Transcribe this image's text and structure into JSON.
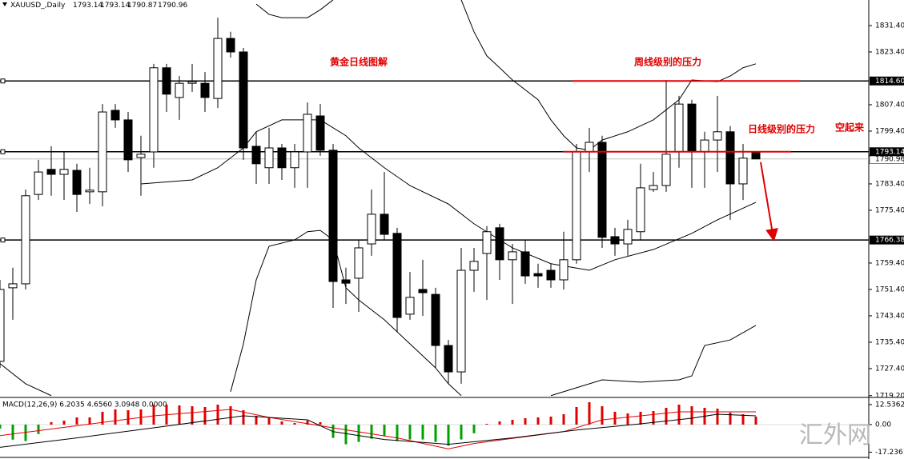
{
  "chart_data": {
    "type": "candlestick",
    "title": "XAUUSD_,Daily",
    "header_values": [
      1793.14,
      1793.14,
      1790.87,
      1790.96
    ],
    "open": [
      1729.6,
      1751.9,
      1753.1,
      1780.2,
      1787.8,
      1786.3,
      1787.5,
      1781.0,
      1781.0,
      1805.7,
      1802.8,
      1791.4,
      1793.1,
      1818.6,
      1809.6,
      1813.9,
      1813.9,
      1809.3,
      1827.5,
      1823.4,
      1794.8,
      1788.3,
      1794.3,
      1788.3,
      1793.1,
      1804.0,
      1793.6,
      1754.3,
      1754.8,
      1765.2,
      1774.2,
      1768.4,
      1743.9,
      1751.4,
      1749.9,
      1734.4,
      1726.4,
      1757.2,
      1762.3,
      1770.1,
      1760.4,
      1762.8,
      1756.2,
      1757.2,
      1754.3,
      1760.4,
      1793.1,
      1796.0,
      1767.4,
      1765.2,
      1768.9,
      1781.7,
      1782.9,
      1793.1,
      1807.6,
      1793.1,
      1796.7,
      1799.2,
      1783.4,
      1793.14
    ],
    "high": [
      1754.3,
      1758.0,
      1781.7,
      1790.7,
      1794.8,
      1793.1,
      1789.5,
      1788.3,
      1807.6,
      1807.6,
      1805.2,
      1798.0,
      1819.8,
      1819.8,
      1816.1,
      1819.8,
      1817.3,
      1833.8,
      1829.5,
      1824.6,
      1799.2,
      1800.4,
      1795.5,
      1795.5,
      1808.1,
      1807.6,
      1795.5,
      1758.0,
      1766.4,
      1781.7,
      1787.0,
      1770.1,
      1756.7,
      1760.4,
      1751.9,
      1736.1,
      1764.0,
      1764.0,
      1770.6,
      1771.3,
      1765.2,
      1766.4,
      1759.2,
      1759.2,
      1768.9,
      1795.5,
      1800.4,
      1798.0,
      1770.1,
      1772.5,
      1789.5,
      1787.0,
      1814.9,
      1810.1,
      1808.9,
      1799.2,
      1810.1,
      1800.9,
      1795.5,
      1793.14
    ],
    "low": [
      1727.6,
      1742.2,
      1751.4,
      1778.5,
      1779.8,
      1778.5,
      1774.9,
      1777.3,
      1776.6,
      1800.4,
      1787.0,
      1779.8,
      1788.3,
      1805.2,
      1802.8,
      1811.3,
      1805.2,
      1806.4,
      1821.7,
      1790.7,
      1783.4,
      1783.4,
      1784.6,
      1782.2,
      1782.2,
      1791.9,
      1745.8,
      1747.0,
      1744.6,
      1761.6,
      1766.4,
      1738.6,
      1742.2,
      1743.4,
      1727.6,
      1722.8,
      1722.8,
      1750.7,
      1748.2,
      1754.3,
      1747.0,
      1753.1,
      1751.9,
      1751.9,
      1751.4,
      1759.2,
      1787.0,
      1764.0,
      1761.6,
      1761.6,
      1766.4,
      1781.0,
      1781.0,
      1788.3,
      1782.2,
      1782.2,
      1787.0,
      1772.5,
      1778.5,
      1790.87
    ],
    "close": [
      1751.4,
      1753.1,
      1779.8,
      1787.0,
      1786.3,
      1787.8,
      1780.2,
      1781.5,
      1805.2,
      1802.8,
      1790.7,
      1792.4,
      1818.6,
      1810.6,
      1813.9,
      1814.4,
      1809.6,
      1827.5,
      1823.4,
      1794.3,
      1789.5,
      1794.3,
      1788.3,
      1793.1,
      1804.5,
      1793.6,
      1753.8,
      1753.3,
      1764.0,
      1774.2,
      1768.1,
      1742.9,
      1749.0,
      1750.4,
      1734.4,
      1726.4,
      1757.2,
      1759.9,
      1768.9,
      1760.4,
      1762.8,
      1755.5,
      1755.5,
      1754.3,
      1760.4,
      1793.1,
      1796.0,
      1767.2,
      1765.2,
      1769.6,
      1782.2,
      1782.9,
      1792.4,
      1807.6,
      1793.1,
      1796.7,
      1799.2,
      1783.4,
      1791.2,
      1790.96
    ],
    "up_color": "#ffffff",
    "down_color": "#000000",
    "ylim": [
      1718.9,
      1839.15
    ],
    "yticks": [
      {
        "value": 1831.4,
        "label": "1831.40"
      },
      {
        "value": 1823.4,
        "label": "1823.40"
      },
      {
        "value": 1807.4,
        "label": "1807.40"
      },
      {
        "value": 1799.4,
        "label": "1799.40"
      },
      {
        "value": 1783.4,
        "label": "1783.40"
      },
      {
        "value": 1775.4,
        "label": "1775.40"
      },
      {
        "value": 1759.4,
        "label": "1759.40"
      },
      {
        "value": 1751.4,
        "label": "1751.40"
      },
      {
        "value": 1743.4,
        "label": "1743.40"
      },
      {
        "value": 1735.4,
        "label": "1735.40"
      },
      {
        "value": 1727.4,
        "label": "1727.40"
      },
      {
        "value": 1719.2,
        "label": "1719.20"
      }
    ],
    "levels": [
      {
        "value": 1814.6,
        "label": "1814.60"
      },
      {
        "value": 1793.14,
        "label": "1793.14"
      },
      {
        "value": 1766.38,
        "label": "1766.38"
      }
    ],
    "last_price": {
      "value": 1790.96,
      "label": "1790.96"
    },
    "pressure_levels": [
      1814.6,
      1793.14
    ],
    "pressure_color": "#e00000",
    "bollinger": {
      "upper": {
        "x": [
          20,
          21,
          22,
          24,
          25,
          26,
          30,
          36,
          37,
          38,
          39,
          40,
          42,
          43,
          44,
          45,
          46,
          47,
          49,
          51,
          53,
          54,
          56,
          57,
          58,
          59
        ],
        "values": [
          1837.9,
          1834.8,
          1833.8,
          1833.8,
          1836.2,
          1839.2,
          null,
          1839.2,
          1829.5,
          1822.2,
          1818.6,
          1814.9,
          1808.9,
          1802.8,
          1798.0,
          1794.3,
          1793.6,
          1796.7,
          1799.2,
          1802.8,
          1808.9,
          1814.9,
          1814.4,
          1816.1,
          1818.6,
          1819.8
        ]
      },
      "middle": {
        "x": [
          11,
          15,
          17,
          19,
          20,
          22,
          25,
          27,
          28,
          30,
          32,
          35,
          37,
          40,
          43,
          46,
          48,
          51,
          54,
          56,
          59
        ],
        "values": [
          1783.4,
          1784.6,
          1788.3,
          1794.3,
          1799.2,
          1802.8,
          1802.8,
          1798.0,
          1794.3,
          1788.3,
          1782.9,
          1777.3,
          1771.3,
          1764.0,
          1759.2,
          1757.2,
          1760.4,
          1763.5,
          1768.4,
          1772.5,
          1777.8
        ]
      },
      "lower": {
        "x": [
          0,
          2,
          4,
          10,
          18,
          19,
          20,
          21,
          23,
          24,
          25,
          26,
          27,
          28,
          30,
          32,
          34,
          35,
          36,
          40,
          43,
          45,
          47,
          50,
          53,
          54,
          55,
          57,
          59
        ],
        "values": [
          1728.9,
          1722.8,
          1719.2,
          null,
          1720.4,
          1734.9,
          1754.3,
          1764.5,
          1766.4,
          1768.9,
          1769.3,
          1766.4,
          1751.9,
          1748.2,
          1742.2,
          1734.9,
          1727.6,
          1722.8,
          1719.2,
          null,
          1719.2,
          1721.6,
          1724.0,
          1723.3,
          1724.0,
          1725.2,
          1734.4,
          1736.1,
          1740.5
        ]
      }
    },
    "annotations": [
      "黄金日线图解",
      "周线级别的压力",
      "日线级别的压力",
      "空起来"
    ],
    "watermark": "汇外网",
    "macd": {
      "title": "MACD(12,26,9) 6.2035 4.6560 3.0948 0.0000",
      "ylim": [
        -20.5,
        16.5
      ],
      "yticks": [
        12.5362,
        {
          "value": 0,
          "label": "0.00"
        },
        -17.2361
      ],
      "histogram": [
        -2.5,
        -9.4,
        -10.3,
        -5.9,
        1.5,
        2.5,
        4.5,
        4.5,
        8.0,
        9.5,
        9.0,
        9.5,
        12.5,
        12.5,
        12.0,
        11.5,
        11.0,
        12.5,
        11.5,
        9.0,
        5.5,
        4.5,
        2.0,
        1.0,
        2.5,
        1.5,
        -8.3,
        -12.3,
        -10.8,
        -8.8,
        -6.9,
        -10.3,
        -9.3,
        -9.3,
        -10.8,
        -13.2,
        -9.3,
        -5.4,
        0.5,
        2.0,
        3.0,
        4.0,
        4.5,
        5.0,
        6.5,
        11.0,
        14.0,
        11.5,
        8.0,
        7.0,
        8.0,
        8.5,
        10.5,
        12.5,
        11.5,
        10.5,
        10.0,
        7.5,
        6.5,
        5.0
      ],
      "positive_color": "#e00000",
      "negative_color": "#00a000",
      "signal": {
        "color": "#e00000",
        "x": [
          0,
          12,
          18,
          21,
          26,
          31,
          35,
          37,
          44,
          47,
          53,
          59
        ],
        "values": [
          -6.9,
          5.5,
          9.5,
          4.5,
          -2.0,
          -8.3,
          -15.2,
          -11.8,
          -4.4,
          3.0,
          8.0,
          8.0
        ]
      },
      "main": {
        "color": "#000000",
        "x": [
          0,
          6,
          12,
          19,
          24,
          26,
          30,
          35,
          40,
          45,
          50,
          54,
          56,
          59
        ],
        "values": [
          -14.2,
          -8.3,
          -2.0,
          5.5,
          3.0,
          -4.4,
          -9.3,
          -12.3,
          -8.3,
          -3.4,
          0.5,
          4.0,
          6.5,
          5.5
        ]
      }
    }
  }
}
